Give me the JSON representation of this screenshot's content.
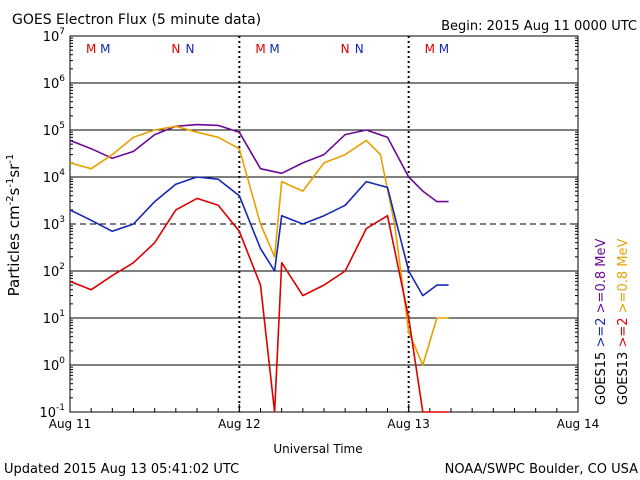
{
  "header": {
    "title": "GOES Electron Flux (5 minute data)",
    "begin": "Begin: 2015 Aug 11 0000 UTC"
  },
  "footer": {
    "updated": "Updated 2015 Aug 13 05:41:02 UTC",
    "credit": "NOAA/SWPC Boulder, CO USA"
  },
  "colors": {
    "goes13_2mev": "#dd0000",
    "goes13_08mev": "#e8a000",
    "goes15_2mev": "#1428b4",
    "goes15_08mev": "#6a0a96"
  },
  "chart_data": {
    "type": "line",
    "title": "GOES Electron Flux (5 minute data)",
    "xlabel": "Universal Time",
    "ylabel": "Particles cm-2 s-1 sr-1",
    "y_scale": "log",
    "ylim": [
      0.1,
      10000000
    ],
    "xlim": [
      "2015-08-11 00:00",
      "2015-08-14 00:00"
    ],
    "x_ticks": [
      "Aug 11",
      "Aug 12",
      "Aug 13",
      "Aug 14"
    ],
    "y_ticks": [
      "10-1",
      "100",
      "101",
      "102",
      "103",
      "104",
      "105",
      "106",
      "107"
    ],
    "dashed_threshold": 1000,
    "day_boundaries": [
      "2015-08-12 00:00",
      "2015-08-13 00:00"
    ],
    "mn_markers": [
      {
        "x": "2015-08-11 03:00",
        "label": "M",
        "sat": "GOES13"
      },
      {
        "x": "2015-08-11 05:00",
        "label": "M",
        "sat": "GOES15"
      },
      {
        "x": "2015-08-11 15:00",
        "label": "N",
        "sat": "GOES13"
      },
      {
        "x": "2015-08-11 17:00",
        "label": "N",
        "sat": "GOES15"
      },
      {
        "x": "2015-08-12 03:00",
        "label": "M",
        "sat": "GOES13"
      },
      {
        "x": "2015-08-12 05:00",
        "label": "M",
        "sat": "GOES15"
      },
      {
        "x": "2015-08-12 15:00",
        "label": "N",
        "sat": "GOES13"
      },
      {
        "x": "2015-08-12 17:00",
        "label": "N",
        "sat": "GOES15"
      },
      {
        "x": "2015-08-13 03:00",
        "label": "M",
        "sat": "GOES13"
      },
      {
        "x": "2015-08-13 05:00",
        "label": "M",
        "sat": "GOES15"
      }
    ],
    "legend": [
      {
        "text": "GOES15",
        "sub": ">=2",
        "rest": ">=0.8 MeV",
        "sub_color": "goes15_2mev",
        "rest_color": "goes15_08mev"
      },
      {
        "text": "GOES13",
        "sub": ">=2",
        "rest": ">=0.8 MeV",
        "sub_color": "goes13_2mev",
        "rest_color": "goes13_08mev"
      }
    ],
    "series": [
      {
        "color": "goes15_08mev",
        "x": [
          "2015-08-11 00:00",
          "2015-08-11 03:00",
          "2015-08-11 06:00",
          "2015-08-11 09:00",
          "2015-08-11 12:00",
          "2015-08-11 15:00",
          "2015-08-11 18:00",
          "2015-08-11 21:00",
          "2015-08-12 00:00",
          "2015-08-12 03:00",
          "2015-08-12 06:00",
          "2015-08-12 09:00",
          "2015-08-12 12:00",
          "2015-08-12 15:00",
          "2015-08-12 18:00",
          "2015-08-12 21:00",
          "2015-08-13 00:00",
          "2015-08-13 02:00",
          "2015-08-13 04:00",
          "2015-08-13 05:40"
        ],
        "y": [
          60000,
          40000,
          25000,
          35000,
          80000,
          120000,
          130000,
          125000,
          90000,
          15000,
          12000,
          20000,
          30000,
          80000,
          100000,
          70000,
          10000,
          5000,
          3000,
          3000
        ]
      },
      {
        "color": "goes13_08mev",
        "x": [
          "2015-08-11 00:00",
          "2015-08-11 03:00",
          "2015-08-11 06:00",
          "2015-08-11 09:00",
          "2015-08-11 12:00",
          "2015-08-11 15:00",
          "2015-08-11 18:00",
          "2015-08-11 21:00",
          "2015-08-12 00:00",
          "2015-08-12 03:00",
          "2015-08-12 05:00",
          "2015-08-12 06:00",
          "2015-08-12 09:00",
          "2015-08-12 12:00",
          "2015-08-12 15:00",
          "2015-08-12 18:00",
          "2015-08-12 20:00",
          "2015-08-12 22:00",
          "2015-08-13 00:00",
          "2015-08-13 02:00",
          "2015-08-13 04:00",
          "2015-08-13 05:40"
        ],
        "y": [
          20000,
          15000,
          30000,
          70000,
          100000,
          120000,
          90000,
          70000,
          40000,
          1000,
          200,
          8000,
          5000,
          20000,
          30000,
          60000,
          30000,
          1000,
          5,
          1,
          10,
          10
        ]
      },
      {
        "color": "goes15_2mev",
        "x": [
          "2015-08-11 00:00",
          "2015-08-11 03:00",
          "2015-08-11 06:00",
          "2015-08-11 09:00",
          "2015-08-11 12:00",
          "2015-08-11 15:00",
          "2015-08-11 18:00",
          "2015-08-11 21:00",
          "2015-08-12 00:00",
          "2015-08-12 03:00",
          "2015-08-12 05:00",
          "2015-08-12 06:00",
          "2015-08-12 09:00",
          "2015-08-12 12:00",
          "2015-08-12 15:00",
          "2015-08-12 18:00",
          "2015-08-12 21:00",
          "2015-08-13 00:00",
          "2015-08-13 02:00",
          "2015-08-13 04:00",
          "2015-08-13 05:40"
        ],
        "y": [
          2000,
          1200,
          700,
          1000,
          3000,
          7000,
          10000,
          9000,
          4000,
          300,
          100,
          1500,
          1000,
          1500,
          2500,
          8000,
          6000,
          100,
          30,
          50,
          50
        ]
      },
      {
        "color": "goes13_2mev",
        "x": [
          "2015-08-11 00:00",
          "2015-08-11 03:00",
          "2015-08-11 06:00",
          "2015-08-11 09:00",
          "2015-08-11 12:00",
          "2015-08-11 15:00",
          "2015-08-11 18:00",
          "2015-08-11 21:00",
          "2015-08-12 00:00",
          "2015-08-12 03:00",
          "2015-08-12 05:00",
          "2015-08-12 06:00",
          "2015-08-12 09:00",
          "2015-08-12 12:00",
          "2015-08-12 15:00",
          "2015-08-12 18:00",
          "2015-08-12 21:00",
          "2015-08-13 00:00",
          "2015-08-13 02:00",
          "2015-08-13 04:00",
          "2015-08-13 05:40"
        ],
        "y": [
          60,
          40,
          80,
          150,
          400,
          2000,
          3500,
          2500,
          700,
          50,
          0.1,
          150,
          30,
          50,
          100,
          800,
          1500,
          10,
          0.1,
          0.1,
          0.1
        ]
      }
    ]
  }
}
